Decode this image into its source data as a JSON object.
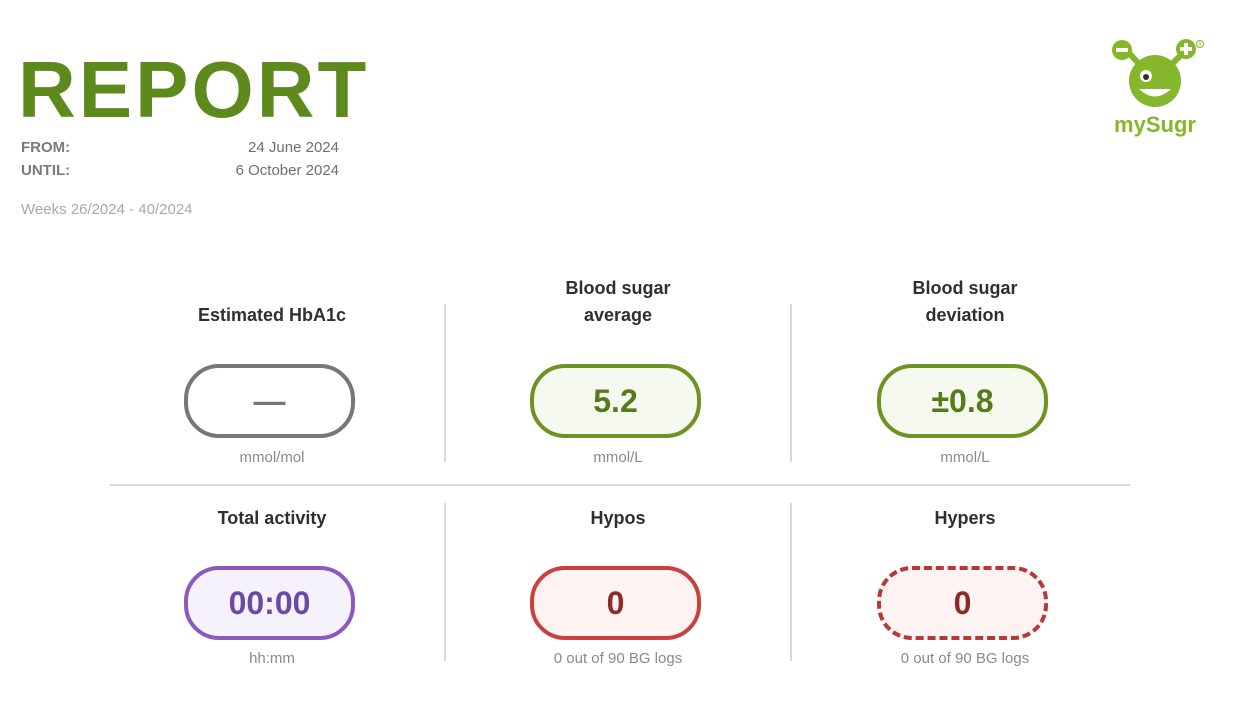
{
  "header": {
    "title": "REPORT",
    "from_label": "FROM:",
    "from_value": "24 June 2024",
    "until_label": "UNTIL:",
    "until_value": "6 October 2024",
    "weeks": "Weeks 26/2024 - 40/2024"
  },
  "logo": {
    "text": "mySugr",
    "color": "#86b62b"
  },
  "tiles": [
    {
      "title": "Estimated HbA1c",
      "value": "—",
      "unit": "mmol/mol",
      "style": "grey"
    },
    {
      "title_line1": "Blood sugar",
      "title_line2": "average",
      "value": "5.2",
      "unit": "mmol/L",
      "style": "green"
    },
    {
      "title_line1": "Blood sugar",
      "title_line2": "deviation",
      "value": "±0.8",
      "unit": "mmol/L",
      "style": "green"
    },
    {
      "title": "Total activity",
      "value": "00:00",
      "unit": "hh:mm",
      "style": "purple"
    },
    {
      "title": "Hypos",
      "value": "0",
      "unit": "0 out of 90 BG logs",
      "style": "red"
    },
    {
      "title": "Hypers",
      "value": "0",
      "unit": "0 out of 90 BG logs",
      "style": "red-dashed"
    }
  ],
  "colors": {
    "brand_green": "#5e8a1d",
    "green": "#6d9322",
    "purple": "#8b59c0",
    "red": "#c9413f",
    "grey": "#777777"
  }
}
